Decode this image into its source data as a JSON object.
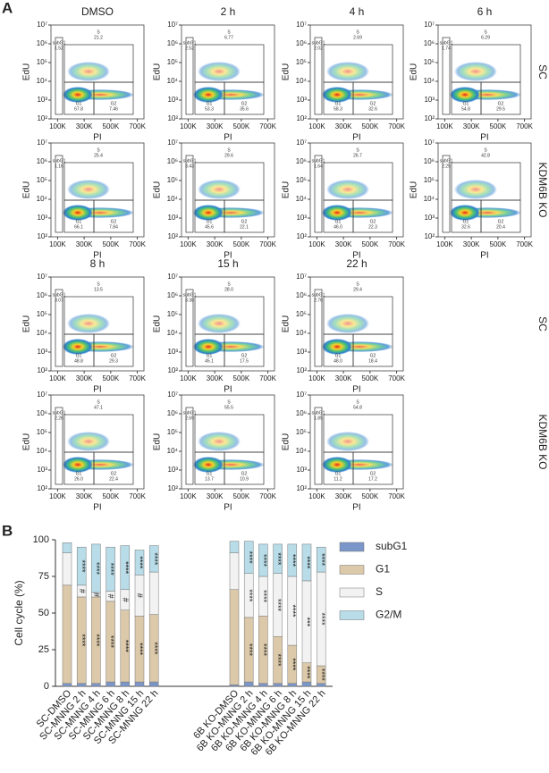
{
  "panel_a": {
    "label": "A",
    "axes": {
      "xlabel": "PI",
      "ylabel": "EdU",
      "xlim": [
        50000,
        750000
      ],
      "xticks": [
        {
          "value": 100000,
          "label": "100K"
        },
        {
          "value": 300000,
          "label": "300K"
        },
        {
          "value": 500000,
          "label": "500K"
        },
        {
          "value": 700000,
          "label": "700K"
        }
      ],
      "ylim": [
        100,
        10000000
      ],
      "yscale": "log",
      "yticks": [
        {
          "value": 100,
          "label": "10²"
        },
        {
          "value": 1000,
          "label": "10³"
        },
        {
          "value": 10000,
          "label": "10⁴"
        },
        {
          "value": 100000,
          "label": "10⁵"
        },
        {
          "value": 1000000,
          "label": "10⁶"
        },
        {
          "value": 10000000,
          "label": "10⁷"
        }
      ]
    },
    "rows": [
      {
        "side_label": "SC",
        "plots": [
          {
            "title": "DMSO",
            "gates": {
              "subG1": {
                "name": "subG1",
                "value": 1.52
              },
              "S": {
                "name": "S",
                "value": 21.2
              },
              "G1": {
                "name": "G1",
                "value": 67.8
              },
              "G2": {
                "name": "G2",
                "value": 7.46
              }
            }
          },
          {
            "title": "2 h",
            "gates": {
              "subG1": {
                "name": "subG1",
                "value": 2.52
              },
              "S": {
                "name": "S",
                "value": 6.77
              },
              "G1": {
                "name": "G1",
                "value": 53.3
              },
              "G2": {
                "name": "G2",
                "value": 35.6
              }
            }
          },
          {
            "title": "4 h",
            "gates": {
              "subG1": {
                "name": "subG1",
                "value": 2.02
              },
              "S": {
                "name": "S",
                "value": 2.69
              },
              "G1": {
                "name": "G1",
                "value": 58.3
              },
              "G2": {
                "name": "G2",
                "value": 32.6
              }
            }
          },
          {
            "title": "6 h",
            "gates": {
              "subG1": {
                "name": "subG1",
                "value": 1.74
              },
              "S": {
                "name": "S",
                "value": 6.29
              },
              "G1": {
                "name": "G1",
                "value": 54.8
              },
              "G2": {
                "name": "G2",
                "value": 29.5
              }
            }
          }
        ]
      },
      {
        "side_label": "KDM6B KO",
        "plots": [
          {
            "gates": {
              "subG1": {
                "name": "subG1",
                "value": 1.16
              },
              "S": {
                "name": "S",
                "value": 25.4
              },
              "G1": {
                "name": "G1",
                "value": 66.1
              },
              "G2": {
                "name": "G2",
                "value": 7.84
              }
            }
          },
          {
            "gates": {
              "subG1": {
                "name": "subG1",
                "value": 3.43
              },
              "S": {
                "name": "S",
                "value": 29.6
              },
              "G1": {
                "name": "G1",
                "value": 45.6
              },
              "G2": {
                "name": "G2",
                "value": 22.1
              }
            }
          },
          {
            "gates": {
              "subG1": {
                "name": "subG1",
                "value": 1.64
              },
              "S": {
                "name": "S",
                "value": 26.7
              },
              "G1": {
                "name": "G1",
                "value": 46,
                "label": "46.0"
              },
              "G2": {
                "name": "G2",
                "value": 22.3
              }
            }
          },
          {
            "gates": {
              "subG1": {
                "name": "subG1",
                "value": 2.25
              },
              "S": {
                "name": "S",
                "value": 42.8
              },
              "G1": {
                "name": "G1",
                "value": 32.6
              },
              "G2": {
                "name": "G2",
                "value": 20.4
              }
            }
          }
        ]
      },
      {
        "side_label": "SC",
        "plots": [
          {
            "title": "8 h",
            "gates": {
              "subG1": {
                "name": "subG1",
                "value": 3.07
              },
              "S": {
                "name": "S",
                "value": 13.5
              },
              "G1": {
                "name": "G1",
                "value": 48.8
              },
              "G2": {
                "name": "G2",
                "value": 29.3
              }
            }
          },
          {
            "title": "15 h",
            "gates": {
              "subG1": {
                "name": "subG1",
                "value": 3.38
              },
              "S": {
                "name": "S",
                "value": 28,
                "label": "28.0"
              },
              "G1": {
                "name": "G1",
                "value": 45.1
              },
              "G2": {
                "name": "G2",
                "value": 17.5
              }
            }
          },
          {
            "title": "22 h",
            "gates": {
              "subG1": {
                "name": "subG1",
                "value": 2.76
              },
              "S": {
                "name": "S",
                "value": 29.4
              },
              "G1": {
                "name": "G1",
                "value": 48,
                "label": "48.0"
              },
              "G2": {
                "name": "G2",
                "value": 18.4
              }
            }
          }
        ]
      },
      {
        "side_label": "KDM6B KO",
        "plots": [
          {
            "gates": {
              "subG1": {
                "name": "subG1",
                "value": 2.26
              },
              "S": {
                "name": "S",
                "value": 47.1
              },
              "G1": {
                "name": "G1",
                "value": 26,
                "label": "26.0"
              },
              "G2": {
                "name": "G2",
                "value": 22.4
              }
            }
          },
          {
            "gates": {
              "subG1": {
                "name": "subG1",
                "value": 2.69
              },
              "S": {
                "name": "S",
                "value": 55.5
              },
              "G1": {
                "name": "G1",
                "value": 13.7
              },
              "G2": {
                "name": "G2",
                "value": 10.9
              }
            }
          },
          {
            "gates": {
              "subG1": {
                "name": "subG1",
                "value": 1.85
              },
              "S": {
                "name": "S",
                "value": 54.8
              },
              "G1": {
                "name": "G1",
                "value": 11.2
              },
              "G2": {
                "name": "G2",
                "value": 17.2
              }
            }
          }
        ]
      }
    ]
  },
  "chart_data": {
    "panel_label": "B",
    "type": "bar",
    "stacked": true,
    "ylabel": "Cell cycle (%)",
    "ylim": [
      0,
      100
    ],
    "yticks": [
      0,
      25,
      50,
      75,
      100
    ],
    "categories": [
      "SC-DMSO",
      "SC-MNNG 2 h",
      "SC-MNNG 4 h",
      "SC-MNNG 6 h",
      "SC-MNNG 8 h",
      "SC-MNNG 15 h",
      "SC-MNNG 22 h",
      "6B KO-DMSO",
      "6B KO-MNNG 2 h",
      "6B KO-MNNG 4 h",
      "6B KO-MNNG 6 h",
      "6B KO-MNNG 8 h",
      "6B KO-MNNG 15 h",
      "6B KO-MNNG 22 h"
    ],
    "legend": "right",
    "series": [
      {
        "name": "subG1",
        "color": "#7b96c8",
        "values": [
          2,
          2,
          2,
          3,
          3,
          3,
          3,
          1,
          3,
          2,
          2,
          2,
          3,
          2
        ],
        "annotations": [
          null,
          null,
          null,
          null,
          null,
          null,
          null,
          null,
          null,
          null,
          null,
          null,
          null,
          null
        ]
      },
      {
        "name": "G1",
        "color": "#dcc9a9",
        "values": [
          67,
          59,
          59,
          55,
          49,
          45,
          46,
          65,
          44,
          46,
          32,
          26,
          13,
          12
        ],
        "annotations": [
          null,
          "****",
          "****",
          "****",
          "****",
          "****",
          "****",
          null,
          "****",
          "****",
          "****",
          "****",
          "****",
          "****"
        ]
      },
      {
        "name": "S",
        "color": "#f2f2f2",
        "values": [
          22,
          8,
          3,
          7,
          14,
          28,
          29,
          25,
          30,
          27,
          43,
          47,
          56,
          64
        ],
        "annotations": [
          null,
          "#",
          "#",
          "#",
          "#",
          "#",
          null,
          null,
          "****",
          "****",
          "****",
          "****",
          "***",
          "****"
        ]
      },
      {
        "name": "G2/M",
        "color": "#b8dce8",
        "values": [
          7,
          26,
          33,
          30,
          30,
          17,
          18,
          8,
          22,
          22,
          20,
          22,
          25,
          17
        ],
        "annotations": [
          null,
          "****",
          "****",
          "****",
          "****",
          "****",
          "****",
          null,
          "****",
          "****",
          "****",
          "****",
          "****",
          "****"
        ]
      }
    ]
  }
}
